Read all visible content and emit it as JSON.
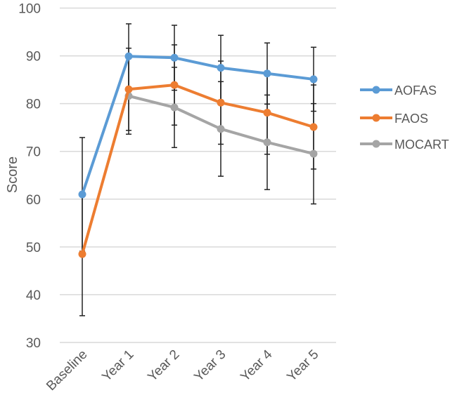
{
  "chart_data": {
    "type": "line",
    "title": "",
    "xlabel": "",
    "ylabel": "Score",
    "ylim": [
      30,
      100
    ],
    "yticks": [
      30,
      40,
      50,
      60,
      70,
      80,
      90,
      100
    ],
    "grid": true,
    "legend_position": "right",
    "categories": [
      "Baseline",
      "Year 1",
      "Year 2",
      "Year 3",
      "Year 4",
      "Year 5"
    ],
    "series": [
      {
        "name": "AOFAS",
        "color": "#5B9BD5",
        "values": [
          61.0,
          89.9,
          89.6,
          87.5,
          86.3,
          85.1
        ],
        "error": [
          11.9,
          6.8,
          6.8,
          6.8,
          6.4,
          6.7
        ]
      },
      {
        "name": "FAOS",
        "color": "#ED7D31",
        "values": [
          48.5,
          83.0,
          83.9,
          80.2,
          78.1,
          75.1
        ],
        "error": [
          12.9,
          8.6,
          8.4,
          8.7,
          8.7,
          8.8
        ]
      },
      {
        "name": "MOCART",
        "color": "#A5A5A5",
        "values": [
          null,
          81.6,
          79.2,
          74.7,
          71.9,
          69.5
        ],
        "error": [
          null,
          8.0,
          8.4,
          9.9,
          9.9,
          10.5
        ]
      }
    ]
  }
}
